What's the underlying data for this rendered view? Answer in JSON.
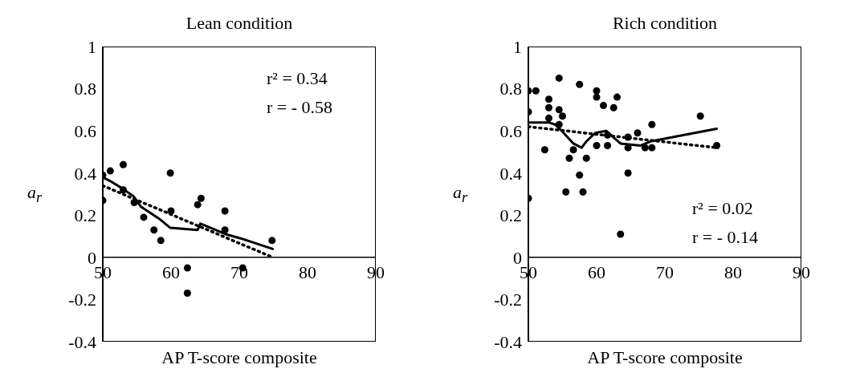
{
  "chart_data": [
    {
      "type": "scatter",
      "title": "Lean condition",
      "xlabel": "AP T-score composite",
      "ylabel": "a$_{r}$",
      "xlim": [
        50,
        90
      ],
      "xticks": [
        50,
        60,
        70,
        80,
        90
      ],
      "ylim": [
        -0.4,
        1
      ],
      "yticks": [
        -0.4,
        -0.2,
        0,
        0.2,
        0.4,
        0.6,
        0.8,
        1
      ],
      "annotations": [
        "r² = 0.34",
        "r = - 0.58"
      ],
      "series": [
        {
          "marker": "circle",
          "color": "#000000",
          "x": [
            50,
            50,
            51.1,
            53,
            53,
            54.6,
            56,
            57.5,
            58.5,
            59.9,
            60,
            62.4,
            62.4,
            63.9,
            64.4,
            67.9,
            67.9,
            70.5,
            74.8
          ],
          "values": [
            0.39,
            0.27,
            0.41,
            0.44,
            0.32,
            0.26,
            0.19,
            0.13,
            0.08,
            0.4,
            0.22,
            -0.05,
            -0.17,
            0.25,
            0.28,
            0.22,
            0.13,
            -0.05,
            0.08
          ]
        },
        {
          "type": "line",
          "color": "#000000",
          "line_style": "solid",
          "x": [
            50,
            51.2,
            52.7,
            54.5,
            55.6,
            58.4,
            59.9,
            63.9,
            64.3,
            68,
            70.2,
            74.9
          ],
          "values": [
            0.38,
            0.36,
            0.33,
            0.29,
            0.24,
            0.18,
            0.14,
            0.13,
            0.16,
            0.11,
            0.09,
            0.04
          ]
        },
        {
          "type": "line",
          "color": "#000000",
          "line_style": "dotted",
          "x": [
            50,
            74.9
          ],
          "values": [
            0.34,
            0
          ]
        }
      ]
    },
    {
      "type": "scatter",
      "title": "Rich condition",
      "xlabel": "AP T-score composite",
      "ylabel": "a$_{r}$",
      "xlim": [
        50,
        90
      ],
      "xticks": [
        50,
        60,
        70,
        80,
        90
      ],
      "ylim": [
        -0.4,
        1
      ],
      "yticks": [
        -0.4,
        -0.2,
        0,
        0.2,
        0.4,
        0.6,
        0.8,
        1
      ],
      "annotations": [
        "r² = 0.02",
        "r = - 0.14"
      ],
      "series": [
        {
          "marker": "circle",
          "color": "#000000",
          "x": [
            50,
            51.1,
            50,
            50,
            52.4,
            53,
            53,
            53,
            54.5,
            54.5,
            55,
            54.5,
            55.5,
            56,
            56.6,
            57.5,
            57.5,
            58,
            58.5,
            60,
            60,
            60,
            61,
            61.6,
            61.6,
            62.5,
            63,
            63.5,
            64.6,
            64.6,
            64.6,
            66,
            67.1,
            68.1,
            68.1,
            75.2,
            77.6
          ],
          "values": [
            0.79,
            0.79,
            0.69,
            0.28,
            0.51,
            0.75,
            0.71,
            0.66,
            0.85,
            0.7,
            0.67,
            0.63,
            0.31,
            0.47,
            0.51,
            0.82,
            0.39,
            0.31,
            0.47,
            0.79,
            0.76,
            0.53,
            0.72,
            0.58,
            0.53,
            0.71,
            0.76,
            0.11,
            0.57,
            0.52,
            0.4,
            0.59,
            0.52,
            0.52,
            0.63,
            0.67,
            0.53
          ]
        },
        {
          "type": "line",
          "color": "#000000",
          "line_style": "solid",
          "x": [
            50,
            53,
            53.9,
            54.9,
            56.6,
            57.8,
            58.5,
            59.8,
            61.4,
            63.5,
            66.4,
            67.9,
            77.6
          ],
          "values": [
            0.64,
            0.64,
            0.63,
            0.6,
            0.54,
            0.52,
            0.55,
            0.59,
            0.6,
            0.54,
            0.53,
            0.55,
            0.61
          ]
        },
        {
          "type": "line",
          "color": "#000000",
          "line_style": "dotted",
          "x": [
            50,
            77.6
          ],
          "values": [
            0.62,
            0.52
          ]
        }
      ]
    }
  ]
}
